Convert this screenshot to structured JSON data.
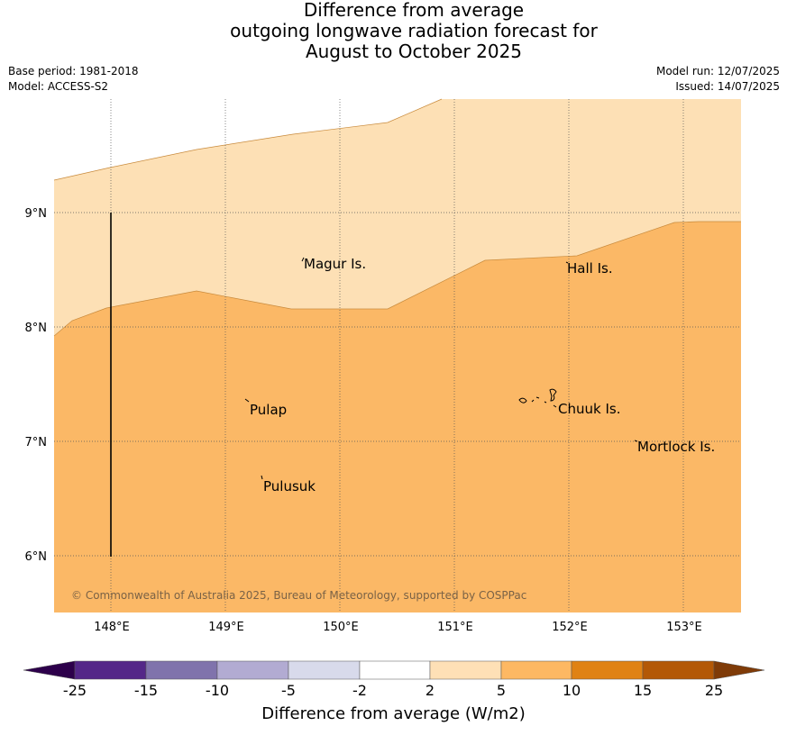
{
  "title": {
    "line1": "Difference from average",
    "line2": "outgoing longwave radiation forecast for",
    "line3": "August to October 2025"
  },
  "meta": {
    "base_period": "Base period: 1981-2018",
    "model": "Model: ACCESS-S2",
    "model_run": "Model run: 12/07/2025",
    "issued": "Issued: 14/07/2025"
  },
  "map": {
    "x_ticks": [
      "148°E",
      "149°E",
      "150°E",
      "151°E",
      "152°E",
      "153°E"
    ],
    "y_ticks": [
      "9°N",
      "8°N",
      "7°N",
      "6°N"
    ],
    "places": [
      {
        "name": "Magur Is."
      },
      {
        "name": "Hall Is."
      },
      {
        "name": "Pulap"
      },
      {
        "name": "Chuuk Is."
      },
      {
        "name": "Mortlock Is."
      },
      {
        "name": "Pulusuk"
      }
    ],
    "copyright": "© Commonwealth of Australia 2025, Bureau of Meteorology, supported by COSPPac",
    "field_colors": {
      "light": "#fde0b5",
      "medium": "#fbb866"
    }
  },
  "colorbar": {
    "label": "Difference from average (W/m2)",
    "ticks": [
      "-25",
      "-15",
      "-10",
      "-5",
      "-2",
      "2",
      "5",
      "10",
      "15",
      "25"
    ],
    "colors": [
      "#2d004b",
      "#542788",
      "#8073ac",
      "#b2abd2",
      "#d8daeb",
      "#ffffff",
      "#fee0b6",
      "#fdb863",
      "#e08214",
      "#b35806",
      "#7f3b08"
    ]
  }
}
